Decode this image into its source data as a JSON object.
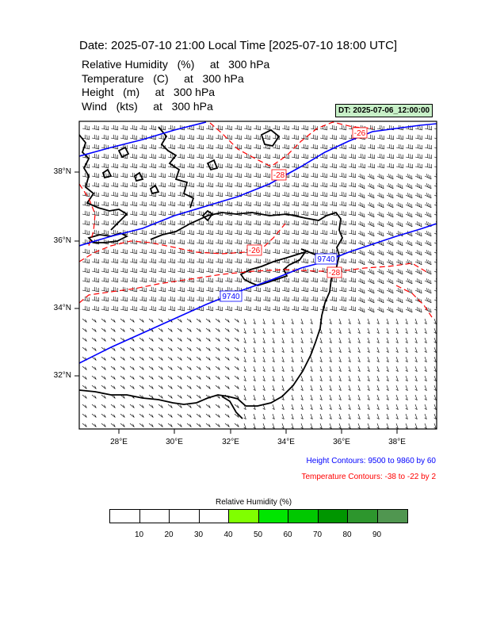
{
  "header": {
    "title": "Date: 2025-07-10  21:00 Local Time [2025-07-10  18:00 UTC]",
    "params": [
      "Relative Humidity   (%)     at   300 hPa",
      "Temperature   (C)     at   300 hPa",
      "Height   (m)     at   300 hPa",
      "Wind   (kts)     at   300 hPa"
    ],
    "dt_badge": "DT: 2025-07-06_12:00:00"
  },
  "map": {
    "lat_labels": [
      "38°N",
      "36°N",
      "34°N",
      "32°N"
    ],
    "lon_labels": [
      "28°E",
      "30°E",
      "32°E",
      "34°E",
      "36°E",
      "38°E"
    ],
    "height_labels": [
      "9740",
      "9740"
    ],
    "temp_labels": [
      "-26",
      "-28",
      "-26",
      "-28"
    ],
    "colors": {
      "height": "#0000ff",
      "temperature": "#ff0000",
      "coast": "#000000",
      "wind": "#000000"
    }
  },
  "notes": {
    "height": "Height Contours: 9500 to 9860 by 60",
    "temperature": "Temperature Contours: -38 to -22 by 2"
  },
  "colorbar": {
    "title": "Relative Humidity   (%)",
    "ticks": [
      "10",
      "20",
      "30",
      "40",
      "50",
      "60",
      "70",
      "80",
      "90"
    ],
    "colors": [
      "#ffffff",
      "#ffffff",
      "#ffffff",
      "#ffffff",
      "#80ff00",
      "#00e600",
      "#00c800",
      "#009600",
      "#2d962d",
      "#509650"
    ]
  }
}
